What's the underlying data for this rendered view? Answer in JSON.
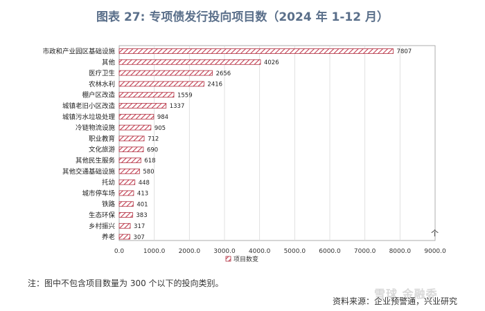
{
  "title": "图表 27: 专项债发行投向项目数（2024 年 1-12 月）",
  "footnote": "注：图中不包含项目数量为 300 个以下的投向类别。",
  "source": "资料来源：企业预警通，兴业研究",
  "watermark": "雪球 金融委",
  "corner_mark": "个",
  "colors": {
    "bar_stroke": "#b03040",
    "bar_fill": "#ffffff",
    "hatch": "#c23a4e",
    "grid": "#d9d9d9"
  },
  "chart_data": {
    "type": "bar",
    "orientation": "horizontal",
    "categories": [
      "市政和产业园区基础设施",
      "其他",
      "医疗卫生",
      "农林水利",
      "棚户区改造",
      "城镇老旧小区改造",
      "城镇污水垃圾处理",
      "冷链物流设施",
      "职业教育",
      "文化旅游",
      "其他民生服务",
      "其他交通基础设施",
      "托幼",
      "城市停车场",
      "铁路",
      "生态环保",
      "乡村振兴",
      "养老"
    ],
    "values": [
      7807,
      4026,
      2656,
      2416,
      1559,
      1337,
      984,
      905,
      712,
      690,
      618,
      580,
      448,
      413,
      401,
      383,
      317,
      307
    ],
    "xlim": [
      0,
      9000
    ],
    "xticks": [
      "0.0",
      "1000.0",
      "2000.0",
      "3000.0",
      "4000.0",
      "5000.0",
      "6000.0",
      "7000.0",
      "8000.0",
      "9000.0"
    ],
    "xtick_values": [
      0,
      1000,
      2000,
      3000,
      4000,
      5000,
      6000,
      7000,
      8000,
      9000
    ],
    "legend": "项目数变",
    "legend_position": "bottom",
    "grid": true
  }
}
